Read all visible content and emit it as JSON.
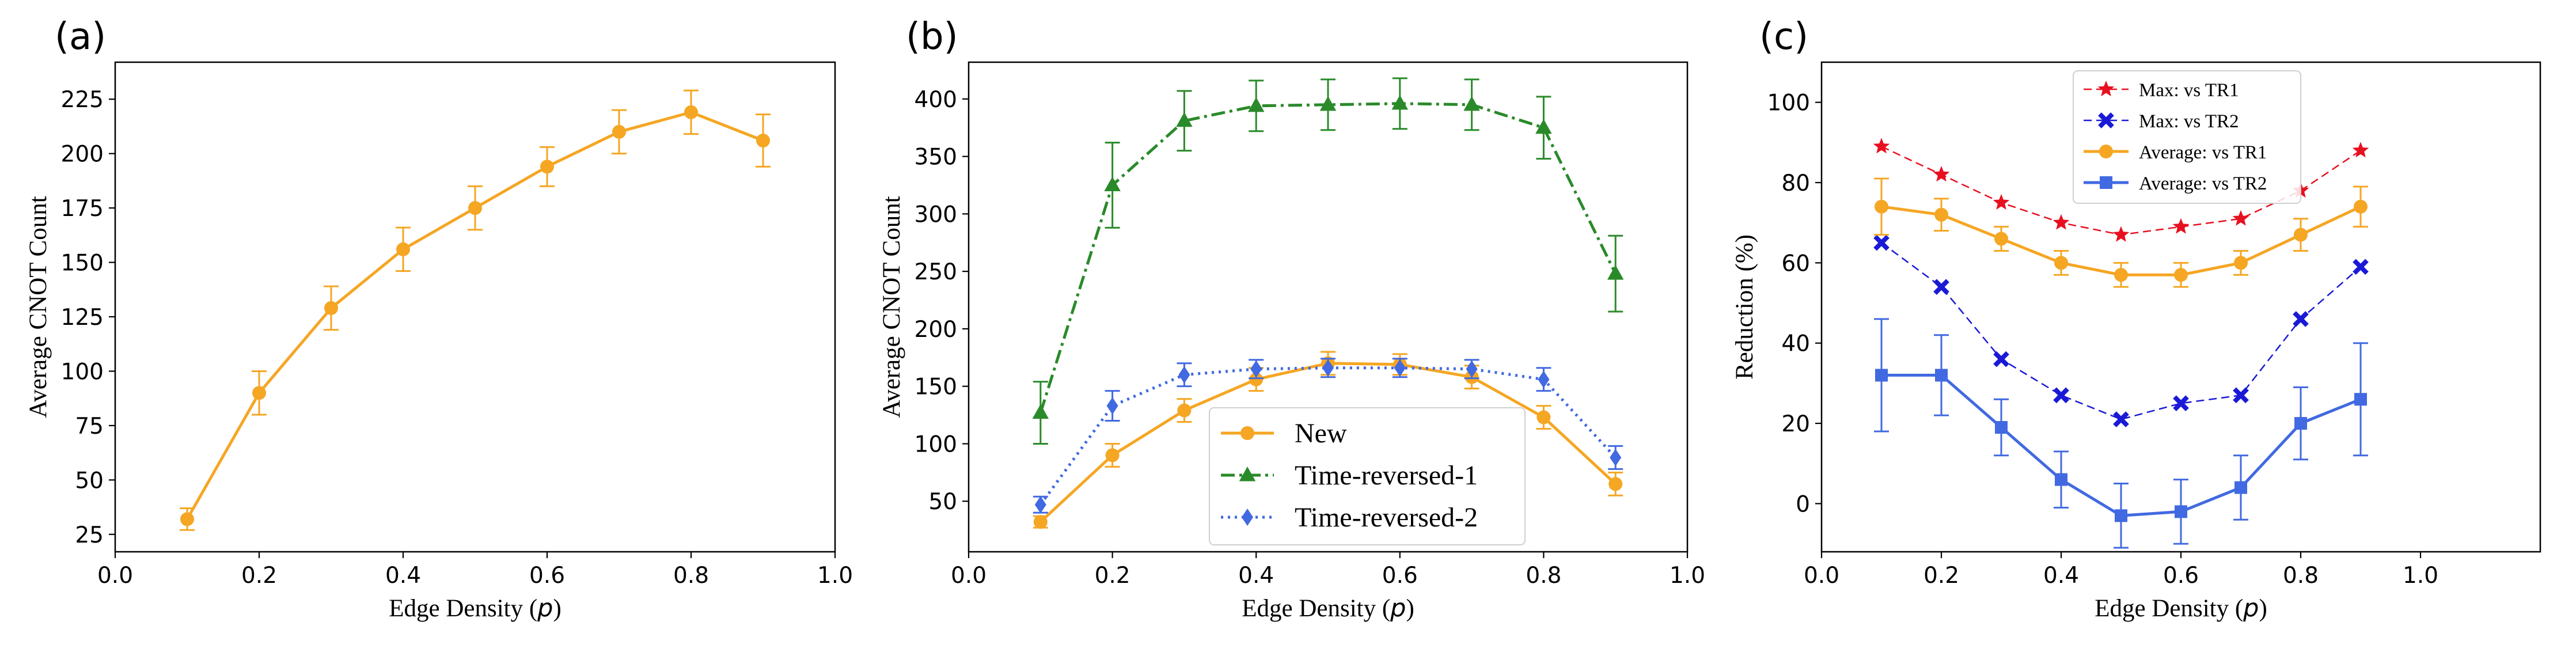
{
  "chart_data": [
    {
      "type": "line",
      "panel_label": "(a)",
      "xlabel": "Edge Density (",
      "xlabel_var": "p",
      "xlabel_close": ")",
      "ylabel": "Average CNOT Count",
      "xlim": [
        0.0,
        1.0
      ],
      "ylim": [
        17,
        242
      ],
      "xticks": [
        "0.0",
        "0.2",
        "0.4",
        "0.6",
        "0.8",
        "1.0"
      ],
      "yticks": [
        "25",
        "50",
        "75",
        "100",
        "125",
        "150",
        "175",
        "200",
        "225"
      ],
      "x": [
        0.1,
        0.2,
        0.3,
        0.4,
        0.5,
        0.6,
        0.7,
        0.8,
        0.9
      ],
      "series": [
        {
          "name": "Average CNOT Count",
          "color": "#f5a623",
          "marker": "circle",
          "dash": "",
          "values": [
            32,
            90,
            129,
            156,
            175,
            194,
            210,
            219,
            206
          ],
          "err": [
            5,
            10,
            10,
            10,
            10,
            9,
            10,
            10,
            12
          ]
        }
      ]
    },
    {
      "type": "line",
      "panel_label": "(b)",
      "xlabel": "Edge Density (",
      "xlabel_var": "p",
      "xlabel_close": ")",
      "ylabel": "Average CNOT Count",
      "xlim": [
        0.0,
        1.0
      ],
      "ylim": [
        6,
        432
      ],
      "xticks": [
        "0.0",
        "0.2",
        "0.4",
        "0.6",
        "0.8",
        "1.0"
      ],
      "yticks": [
        "50",
        "100",
        "150",
        "200",
        "250",
        "300",
        "350",
        "400"
      ],
      "x": [
        0.1,
        0.2,
        0.3,
        0.4,
        0.5,
        0.6,
        0.7,
        0.8,
        0.9
      ],
      "legend": {
        "position": "bottom-center"
      },
      "series": [
        {
          "name": "New",
          "color": "#f5a623",
          "marker": "circle",
          "dash": "",
          "values": [
            32,
            90,
            129,
            156,
            170,
            169,
            158,
            123,
            65
          ],
          "err": [
            5,
            10,
            10,
            10,
            10,
            9,
            10,
            10,
            10
          ]
        },
        {
          "name": "Time-reversed-1",
          "color": "#2a8a2a",
          "marker": "triangle",
          "dash": "dashdot",
          "values": [
            127,
            325,
            381,
            394,
            395,
            396,
            395,
            375,
            248
          ],
          "err": [
            27,
            37,
            26,
            22,
            22,
            22,
            22,
            27,
            33
          ]
        },
        {
          "name": "Time-reversed-2",
          "color": "#4169e1",
          "marker": "diamond",
          "dash": "dotted",
          "values": [
            47,
            133,
            160,
            165,
            166,
            166,
            165,
            156,
            88
          ],
          "err": [
            7,
            13,
            10,
            8,
            8,
            8,
            8,
            10,
            10
          ]
        }
      ]
    },
    {
      "type": "line",
      "panel_label": "(c)",
      "xlabel": "Edge Density (",
      "xlabel_var": "p",
      "xlabel_close": ")",
      "ylabel": "Reduction (%)",
      "xlim": [
        0.0,
        1.2
      ],
      "ylim": [
        -12,
        110
      ],
      "xticks": [
        "0.0",
        "0.2",
        "0.4",
        "0.6",
        "0.8",
        "1.0"
      ],
      "xtick_values": [
        0.0,
        0.2,
        0.4,
        0.6,
        0.8,
        1.0
      ],
      "yticks": [
        "0",
        "20",
        "40",
        "60",
        "80",
        "100"
      ],
      "x": [
        0.1,
        0.2,
        0.3,
        0.4,
        0.5,
        0.6,
        0.7,
        0.8,
        0.9
      ],
      "legend": {
        "position": "top-center"
      },
      "series": [
        {
          "name": "Max: vs TR1",
          "color": "#e8101f",
          "marker": "star",
          "dash": "dashed",
          "values": [
            89,
            82,
            75,
            70,
            67,
            69,
            71,
            78,
            88
          ],
          "err": null
        },
        {
          "name": "Max: vs TR2",
          "color": "#1a1ad6",
          "marker": "x",
          "dash": "dashed",
          "values": [
            65,
            54,
            36,
            27,
            21,
            25,
            27,
            46,
            59
          ],
          "err": null
        },
        {
          "name": "Average: vs TR1",
          "color": "#f5a623",
          "marker": "circle",
          "dash": "",
          "values": [
            74,
            72,
            66,
            60,
            57,
            57,
            60,
            67,
            74
          ],
          "err": [
            7,
            4,
            3,
            3,
            3,
            3,
            3,
            4,
            5
          ]
        },
        {
          "name": "Average: vs TR2",
          "color": "#4169e1",
          "marker": "square",
          "dash": "",
          "values": [
            32,
            32,
            19,
            6,
            -3,
            -2,
            4,
            20,
            26
          ],
          "err": [
            14,
            10,
            7,
            7,
            8,
            8,
            8,
            9,
            14
          ]
        }
      ]
    }
  ]
}
